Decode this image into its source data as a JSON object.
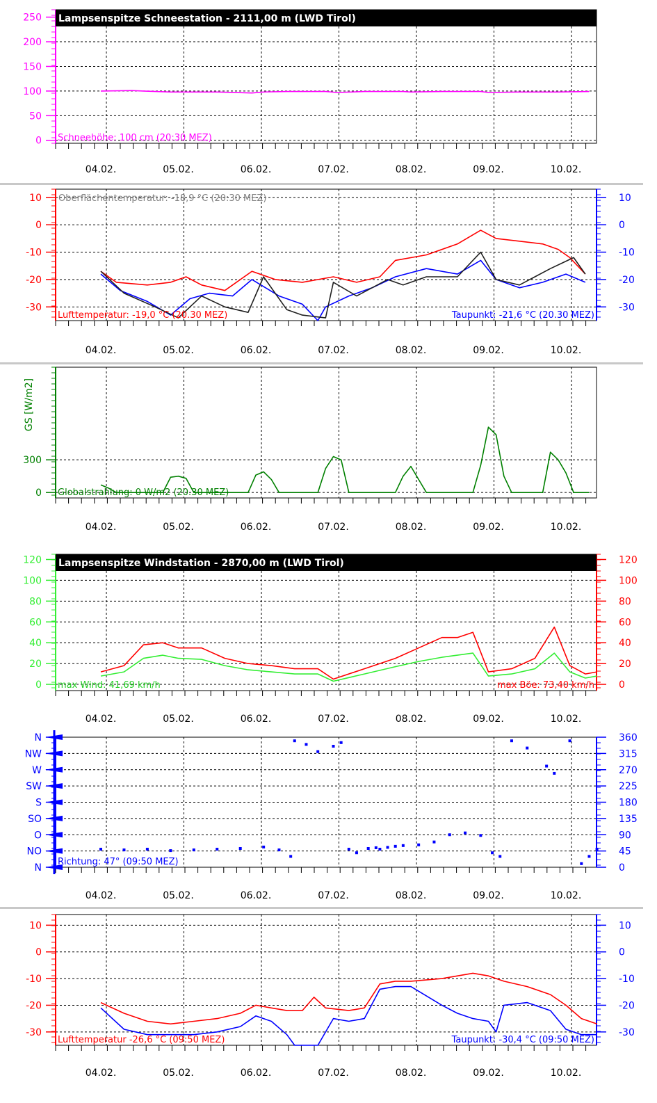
{
  "days": [
    "04.02.",
    "05.02.",
    "06.02.",
    "07.02.",
    "08.02.",
    "09.02.",
    "10.02."
  ],
  "colors": {
    "magenta": "#ff00ff",
    "red": "#ff0000",
    "blue": "#0000ff",
    "green": "#33ee33",
    "darkgreen": "#008000",
    "gray": "#808080",
    "darkgray": "#202020",
    "separator": "#c8c8c8"
  },
  "chart_data": [
    {
      "type": "line",
      "title": "Lampsenspitze Schneestation - 2111,00 m (LWD Tirol)",
      "info_left": "Schneehöhe: 100 cm (20:30 MEZ)",
      "y_ticks_left": [
        "250",
        "200",
        "150",
        "100",
        "50",
        "0"
      ],
      "y_tick_values": [
        250,
        200,
        150,
        100,
        50,
        0
      ],
      "ylim": [
        -6,
        265
      ],
      "series": [
        {
          "color": "magenta",
          "x": [
            0.0,
            0.4,
            0.55,
            0.9,
            1.5,
            1.95,
            2.1,
            2.4,
            2.9,
            3.05,
            3.4,
            3.9,
            4.0,
            4.4,
            4.9,
            5.0,
            5.4,
            5.9,
            6.3
          ],
          "y": [
            100,
            101,
            100,
            98,
            98,
            96,
            98,
            99,
            99,
            97,
            99,
            99,
            98,
            99,
            99,
            97,
            98,
            98,
            99
          ]
        }
      ]
    },
    {
      "type": "line",
      "info_top": "Oberflächentemperatur: -18,9 °C (20:30 MEZ)",
      "info_left": "Lufttemperatur: -19,0 °C (20.30 MEZ)",
      "info_right": "Taupunkt: -21,6 °C (20.30 MEZ)",
      "y_ticks_left": [
        "10",
        "0",
        "-10",
        "-20",
        "-30"
      ],
      "y_ticks_right": [
        "10",
        "0",
        "-10",
        "-20",
        "-30"
      ],
      "y_tick_values": [
        10,
        0,
        -10,
        -20,
        -30
      ],
      "ylim": [
        -35,
        13
      ],
      "series": [
        {
          "color": "red",
          "x": [
            0.0,
            0.2,
            0.6,
            0.9,
            1.1,
            1.3,
            1.6,
            1.95,
            2.25,
            2.6,
            3.0,
            3.3,
            3.6,
            3.8,
            4.2,
            4.6,
            4.9,
            5.1,
            5.4,
            5.7,
            5.9,
            6.05,
            6.25
          ],
          "y": [
            -17,
            -21,
            -22,
            -21,
            -19,
            -22,
            -24,
            -17,
            -20,
            -21,
            -19,
            -21,
            -19,
            -13,
            -11,
            -7,
            -2,
            -5,
            -6,
            -7,
            -9,
            -12,
            -18
          ]
        },
        {
          "color": "blue",
          "x": [
            0.0,
            0.25,
            0.6,
            0.9,
            1.15,
            1.4,
            1.7,
            1.95,
            2.3,
            2.6,
            2.8,
            2.9,
            3.2,
            3.5,
            3.8,
            4.2,
            4.6,
            4.9,
            5.1,
            5.4,
            5.7,
            6.0,
            6.25
          ],
          "y": [
            -18,
            -24,
            -28,
            -33,
            -27,
            -25,
            -26,
            -20,
            -26,
            -29,
            -35,
            -30,
            -26,
            -23,
            -19,
            -16,
            -18,
            -13,
            -20,
            -23,
            -21,
            -18,
            -21
          ]
        },
        {
          "color": "darkgray",
          "x": [
            0.0,
            0.3,
            0.7,
            1.0,
            1.3,
            1.6,
            1.9,
            2.1,
            2.4,
            2.6,
            2.9,
            3.0,
            3.3,
            3.7,
            3.9,
            4.2,
            4.6,
            4.9,
            5.1,
            5.4,
            5.6,
            5.8,
            6.1,
            6.25
          ],
          "y": [
            -17,
            -25,
            -30,
            -34,
            -26,
            -30,
            -32,
            -19,
            -31,
            -33,
            -34,
            -21,
            -26,
            -20,
            -22,
            -19,
            -19,
            -10,
            -20,
            -22,
            -19,
            -16,
            -12,
            -18
          ]
        }
      ]
    },
    {
      "type": "area",
      "ylabel": "GS [W/m2]",
      "info_left": "Globalstrahlung: 0 W/m2 (20.30 MEZ)",
      "y_ticks_left": [
        "300",
        "0"
      ],
      "y_tick_values": [
        300,
        0
      ],
      "ylim": [
        -50,
        1150
      ],
      "series": [
        {
          "color": "darkgreen",
          "x": [
            0.0,
            0.1,
            0.2,
            0.8,
            0.9,
            1.0,
            1.1,
            1.2,
            1.9,
            2.0,
            2.1,
            2.2,
            2.3,
            2.8,
            2.9,
            3.0,
            3.1,
            3.2,
            3.8,
            3.9,
            4.0,
            4.1,
            4.2,
            4.8,
            4.9,
            5.0,
            5.1,
            5.2,
            5.3,
            5.7,
            5.8,
            5.9,
            6.0,
            6.1,
            6.3
          ],
          "y": [
            70,
            40,
            0,
            0,
            140,
            150,
            130,
            0,
            0,
            160,
            190,
            120,
            0,
            0,
            220,
            330,
            300,
            0,
            0,
            150,
            240,
            120,
            0,
            0,
            250,
            600,
            530,
            150,
            0,
            0,
            370,
            300,
            180,
            0,
            0
          ]
        }
      ]
    },
    {
      "type": "line",
      "title": "Lampsenspitze Windstation - 2870,00 m (LWD Tirol)",
      "info_left": "max Wind: 41,69 km/h",
      "info_right": "max Böe: 73,40 km/h",
      "y_ticks_left": [
        "120",
        "100",
        "80",
        "60",
        "40",
        "20",
        "0"
      ],
      "y_ticks_right": [
        "120",
        "100",
        "80",
        "60",
        "40",
        "20",
        "0"
      ],
      "y_tick_values": [
        120,
        100,
        80,
        60,
        40,
        20,
        0
      ],
      "ylim": [
        -6,
        125
      ],
      "series": [
        {
          "color": "red",
          "x": [
            0.0,
            0.3,
            0.55,
            0.8,
            1.0,
            1.3,
            1.6,
            1.9,
            2.2,
            2.5,
            2.8,
            3.0,
            3.4,
            3.8,
            4.1,
            4.4,
            4.6,
            4.8,
            5.0,
            5.3,
            5.6,
            5.85,
            6.05,
            6.25,
            6.4
          ],
          "y": [
            12,
            18,
            38,
            40,
            35,
            35,
            25,
            20,
            18,
            15,
            15,
            5,
            15,
            25,
            35,
            45,
            45,
            50,
            12,
            15,
            25,
            55,
            18,
            10,
            12
          ]
        },
        {
          "color": "green",
          "x": [
            0.0,
            0.3,
            0.55,
            0.8,
            1.0,
            1.3,
            1.6,
            1.9,
            2.2,
            2.5,
            2.8,
            3.0,
            3.4,
            3.8,
            4.1,
            4.4,
            4.6,
            4.8,
            5.0,
            5.3,
            5.6,
            5.85,
            6.05,
            6.25,
            6.4
          ],
          "y": [
            8,
            12,
            25,
            28,
            25,
            24,
            18,
            14,
            12,
            10,
            10,
            3,
            10,
            17,
            22,
            26,
            28,
            30,
            8,
            10,
            15,
            30,
            12,
            6,
            8
          ]
        }
      ]
    },
    {
      "type": "scatter",
      "info_left": "Richtung: 47° (09:50 MEZ)",
      "y_ticks_left": [
        "N",
        "NW",
        "W",
        "SW",
        "S",
        "SO",
        "O",
        "NO",
        "N"
      ],
      "y_ticks_right": [
        "360",
        "315",
        "270",
        "225",
        "180",
        "135",
        "90",
        "45",
        "0"
      ],
      "y_tick_values": [
        360,
        315,
        270,
        225,
        180,
        135,
        90,
        45,
        0
      ],
      "ylim": [
        0,
        360
      ],
      "series": [
        {
          "color": "blue",
          "x": [
            0.0,
            0.3,
            0.6,
            0.9,
            1.2,
            1.5,
            1.8,
            2.1,
            2.3,
            2.45,
            2.5,
            2.65,
            2.8,
            3.0,
            3.1,
            3.2,
            3.3,
            3.45,
            3.55,
            3.6,
            3.7,
            3.8,
            3.9,
            4.1,
            4.3,
            4.5,
            4.7,
            4.9,
            5.05,
            5.15,
            5.3,
            5.5,
            5.75,
            5.85,
            6.05,
            6.2,
            6.3,
            6.4
          ],
          "y": [
            50,
            48,
            50,
            46,
            48,
            50,
            52,
            56,
            48,
            30,
            350,
            340,
            320,
            335,
            345,
            50,
            40,
            52,
            54,
            50,
            55,
            58,
            60,
            62,
            70,
            90,
            95,
            88,
            40,
            30,
            350,
            330,
            280,
            260,
            350,
            10,
            30,
            50
          ]
        }
      ]
    },
    {
      "type": "line",
      "info_left": "Lufttemperatur -26,6 °C (09:50 MEZ)",
      "info_right": "Taupunkt: -30,4 °C (09:50 MEZ)",
      "y_ticks_left": [
        "10",
        "0",
        "-10",
        "-20",
        "-30"
      ],
      "y_ticks_right": [
        "10",
        "0",
        "-10",
        "-20",
        "-30"
      ],
      "y_tick_values": [
        10,
        0,
        -10,
        -20,
        -30
      ],
      "ylim": [
        -35,
        14
      ],
      "series": [
        {
          "color": "red",
          "x": [
            0.0,
            0.3,
            0.6,
            0.9,
            1.2,
            1.5,
            1.8,
            2.0,
            2.2,
            2.4,
            2.6,
            2.75,
            2.9,
            3.2,
            3.4,
            3.6,
            3.8,
            4.0,
            4.4,
            4.8,
            5.0,
            5.2,
            5.5,
            5.8,
            6.0,
            6.2,
            6.4
          ],
          "y": [
            -19,
            -23,
            -26,
            -27,
            -26,
            -25,
            -23,
            -20,
            -21,
            -22,
            -22,
            -17,
            -21,
            -22,
            -21,
            -12,
            -11,
            -11,
            -10,
            -8,
            -9,
            -11,
            -13,
            -16,
            -20,
            -25,
            -27
          ]
        },
        {
          "color": "blue",
          "x": [
            0.0,
            0.3,
            0.6,
            0.9,
            1.2,
            1.5,
            1.8,
            2.0,
            2.2,
            2.4,
            2.5,
            2.8,
            3.0,
            3.2,
            3.4,
            3.6,
            3.8,
            4.0,
            4.4,
            4.6,
            4.8,
            5.0,
            5.1,
            5.2,
            5.5,
            5.8,
            6.0,
            6.2,
            6.4
          ],
          "y": [
            -21,
            -29,
            -31,
            -31,
            -31,
            -30,
            -28,
            -24,
            -26,
            -31,
            -35,
            -35,
            -25,
            -26,
            -25,
            -14,
            -13,
            -13,
            -20,
            -23,
            -25,
            -26,
            -30,
            -20,
            -19,
            -22,
            -29,
            -31,
            -31
          ]
        }
      ]
    }
  ]
}
